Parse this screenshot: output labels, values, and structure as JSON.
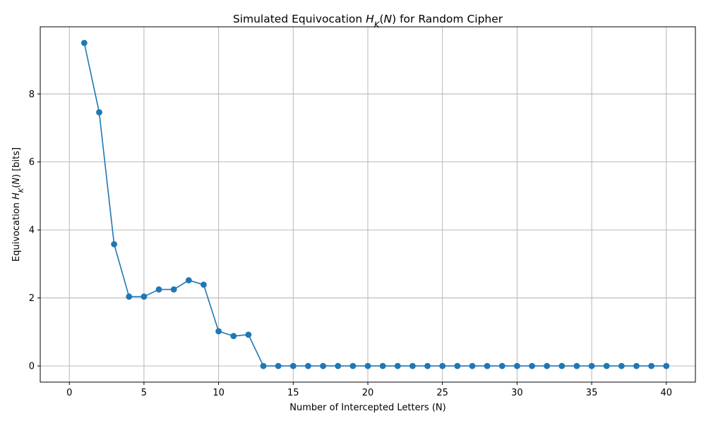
{
  "chart_data": {
    "type": "line",
    "title": "Simulated Equivocation H_K(N) for Random Cipher",
    "xlabel": "Number of Intercepted Letters (N)",
    "ylabel": "Equivocation H_K(N) [bits]",
    "xlim": [
      -1.95,
      41.95
    ],
    "ylim": [
      -0.475,
      9.975
    ],
    "xticks": [
      0,
      5,
      10,
      15,
      20,
      25,
      30,
      35,
      40
    ],
    "yticks": [
      0,
      2,
      4,
      6,
      8
    ],
    "grid": true,
    "legend": "none",
    "series": [
      {
        "color": "#1f77b4",
        "marker": "circle",
        "x": [
          1,
          2,
          3,
          4,
          5,
          6,
          7,
          8,
          9,
          10,
          11,
          12,
          13,
          14,
          15,
          16,
          17,
          18,
          19,
          20,
          21,
          22,
          23,
          24,
          25,
          26,
          27,
          28,
          29,
          30,
          31,
          32,
          33,
          34,
          35,
          36,
          37,
          38,
          39,
          40
        ],
        "y": [
          9.5,
          7.46,
          3.58,
          2.04,
          2.04,
          2.25,
          2.25,
          2.52,
          2.39,
          1.02,
          0.88,
          0.92,
          0,
          0,
          0,
          0,
          0,
          0,
          0,
          0,
          0,
          0,
          0,
          0,
          0,
          0,
          0,
          0,
          0,
          0,
          0,
          0,
          0,
          0,
          0,
          0,
          0,
          0,
          0,
          0
        ]
      }
    ]
  }
}
